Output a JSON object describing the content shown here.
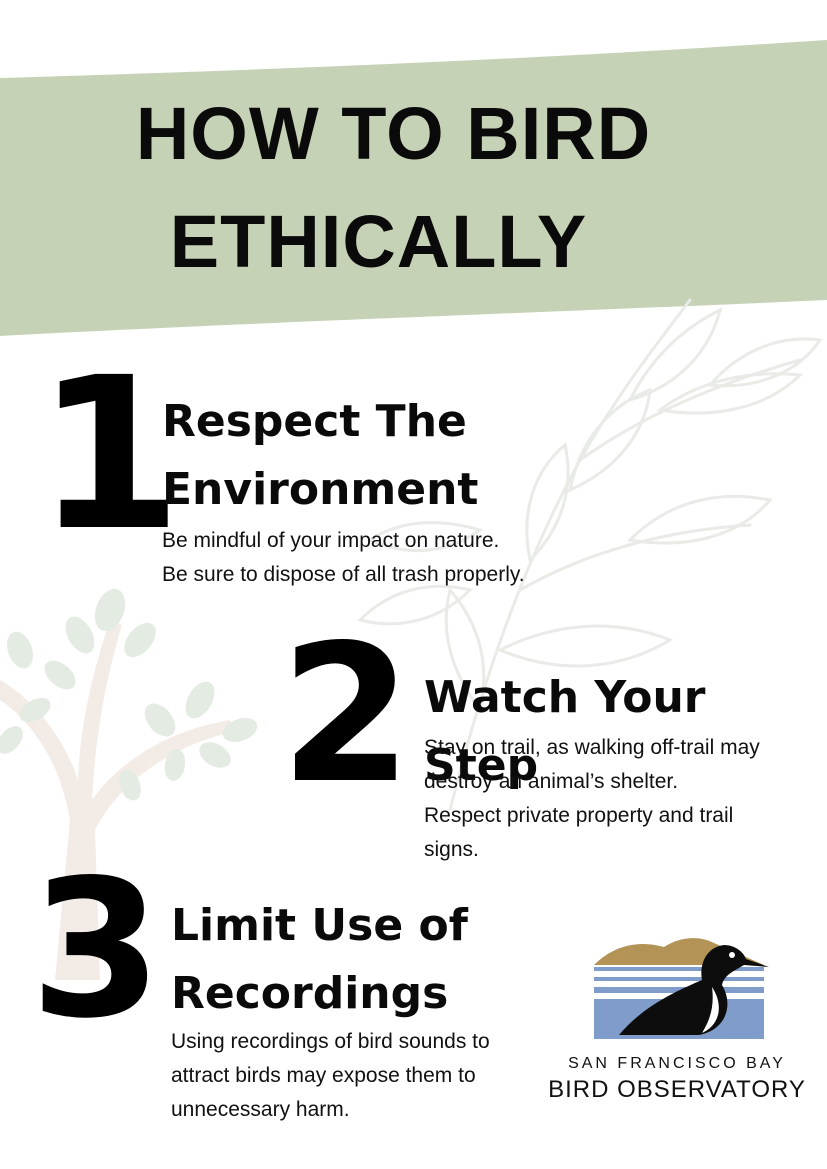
{
  "title": {
    "line1": "HOW TO BIRD",
    "line2": "ETHICALLY"
  },
  "colors": {
    "banner": "#c6d2b6",
    "leaf_outline": "#e9ebe7",
    "tree_trunk": "#f3ebe6",
    "tree_leaf": "#e4ebe2",
    "logo_hill": "#b39356",
    "logo_water": "#7f9ccb"
  },
  "steps": [
    {
      "number": "1",
      "title_line1": "Respect The",
      "title_line2": "Environment",
      "body": [
        "Be mindful of your impact on nature.",
        "Be sure to dispose of all trash properly."
      ]
    },
    {
      "number": "2",
      "title_line1": "Watch Your Step",
      "body": [
        "Stay on trail, as walking off-trail may",
        "destroy an animal’s shelter.",
        "Respect private property and trail",
        "signs."
      ]
    },
    {
      "number": "3",
      "title_line1": "Limit Use of",
      "title_line2": "Recordings",
      "body": [
        "Using recordings of bird sounds to",
        "attract birds may expose them to",
        "unnecessary harm."
      ]
    }
  ],
  "logo": {
    "icon": "stilt-bird-logo-icon",
    "line1": "SAN FRANCISCO BAY",
    "line2": "BIRD OBSERVATORY"
  }
}
